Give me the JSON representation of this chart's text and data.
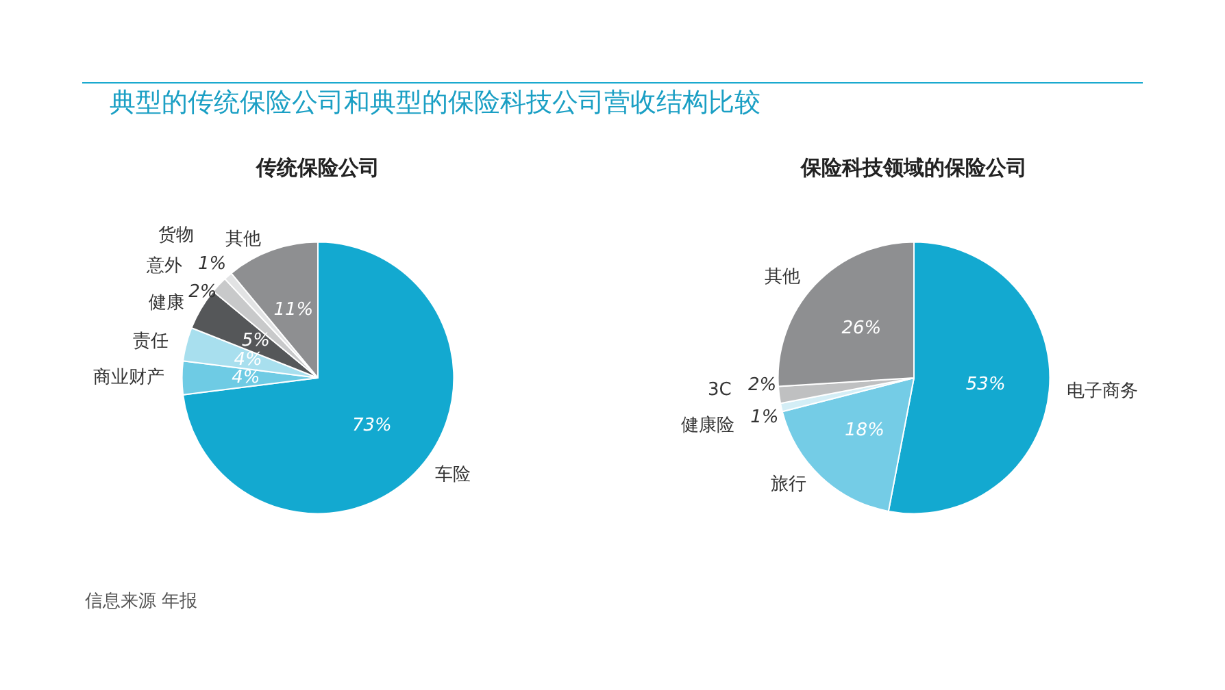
{
  "chart_data": [
    {
      "type": "pie",
      "title": "典型的传统保险公司和典型的保险科技公司营收结构比较",
      "subtitle": "传统保险公司",
      "categories": [
        "车险",
        "商业财产",
        "责任",
        "健康",
        "意外",
        "货物",
        "其他"
      ],
      "values": [
        73,
        4,
        4,
        5,
        2,
        1,
        11
      ],
      "value_labels": [
        "73%",
        "4%",
        "4%",
        "5%",
        "2%",
        "1%",
        "11%"
      ],
      "colors": [
        "#13a9d0",
        "#6ecbe4",
        "#a8dfee",
        "#555759",
        "#c8c9ca",
        "#e2e3e4",
        "#8e8f91"
      ],
      "legend": false,
      "annotations": [
        "信息来源 年报"
      ]
    },
    {
      "type": "pie",
      "title": "保险科技领域的保险公司",
      "categories": [
        "电子商务",
        "旅行",
        "健康险",
        "3C",
        "其他"
      ],
      "values": [
        53,
        18,
        1,
        2,
        26
      ],
      "value_labels": [
        "53%",
        "18%",
        "1%",
        "2%",
        "26%"
      ],
      "colors": [
        "#13a9d0",
        "#74cce6",
        "#d4eef6",
        "#bfc0c1",
        "#8e8f91"
      ],
      "legend": false
    }
  ]
}
